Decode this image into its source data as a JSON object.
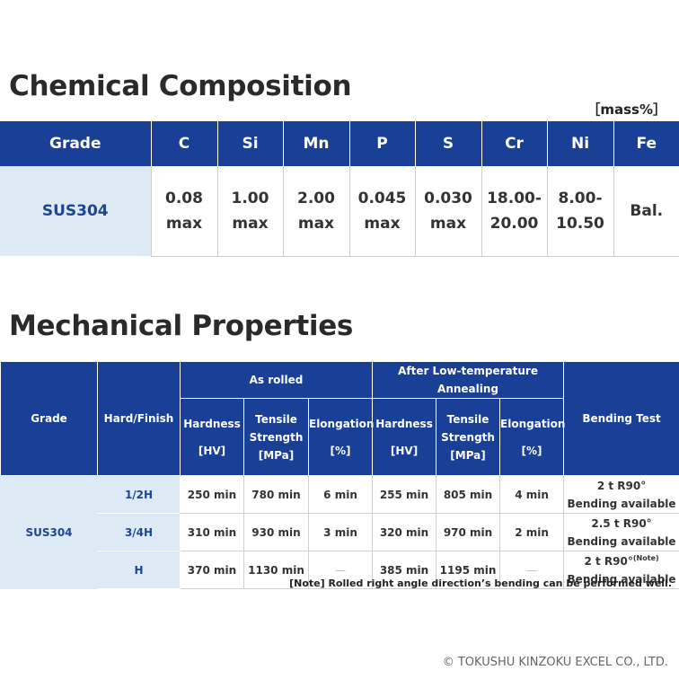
{
  "chemical": {
    "title": "Chemical Composition",
    "unit": "［mass%］",
    "headers": [
      "Grade",
      "C",
      "Si",
      "Mn",
      "P",
      "S",
      "Cr",
      "Ni",
      "Fe"
    ],
    "row": {
      "grade": "SUS304",
      "values": [
        [
          "0.08",
          "max"
        ],
        [
          "1.00",
          "max"
        ],
        [
          "2.00",
          "max"
        ],
        [
          "0.045",
          "max"
        ],
        [
          "0.030",
          "max"
        ],
        [
          "18.00-",
          "20.00"
        ],
        [
          "8.00-",
          "10.50"
        ],
        [
          "Bal.",
          ""
        ]
      ]
    }
  },
  "mechanical": {
    "title": "Mechanical Properties",
    "headers": {
      "grade": "Grade",
      "hard_finish": "Hard/Finish",
      "as_rolled": "As rolled",
      "annealing": "After Low-temperature Annealing",
      "bending": "Bending Test",
      "hardness": "Hardness",
      "hardness_unit": "[HV]",
      "tensile_1": "Tensile",
      "tensile_2": "Strength",
      "tensile_unit": "[MPa]",
      "elongation": "Elongation",
      "elongation_unit": "[%]"
    },
    "grade": "SUS304",
    "rows": [
      {
        "hard": "1/2H",
        "ar_hardness": "250 min",
        "ar_tensile": "780 min",
        "ar_elong": "6 min",
        "an_hardness": "255 min",
        "an_tensile": "805 min",
        "an_elong": "4 min",
        "bend_1": "2 t R90°",
        "bend_note": "",
        "bend_2": "Bending available"
      },
      {
        "hard": "3/4H",
        "ar_hardness": "310 min",
        "ar_tensile": "930 min",
        "ar_elong": "3 min",
        "an_hardness": "320 min",
        "an_tensile": "970 min",
        "an_elong": "2 min",
        "bend_1": "2.5 t R90°",
        "bend_note": "",
        "bend_2": "Bending available"
      },
      {
        "hard": "H",
        "ar_hardness": "370 min",
        "ar_tensile": "1130 min",
        "ar_elong": "—",
        "an_hardness": "385 min",
        "an_tensile": "1195 min",
        "an_elong": "—",
        "bend_1": "2 t R90°",
        "bend_note": "(Note)",
        "bend_2": "Bending available"
      }
    ],
    "note": "[Note] Rolled right angle direction’s bending can be performed well."
  },
  "copyright": "© TOKUSHU KINZOKU EXCEL CO., LTD."
}
